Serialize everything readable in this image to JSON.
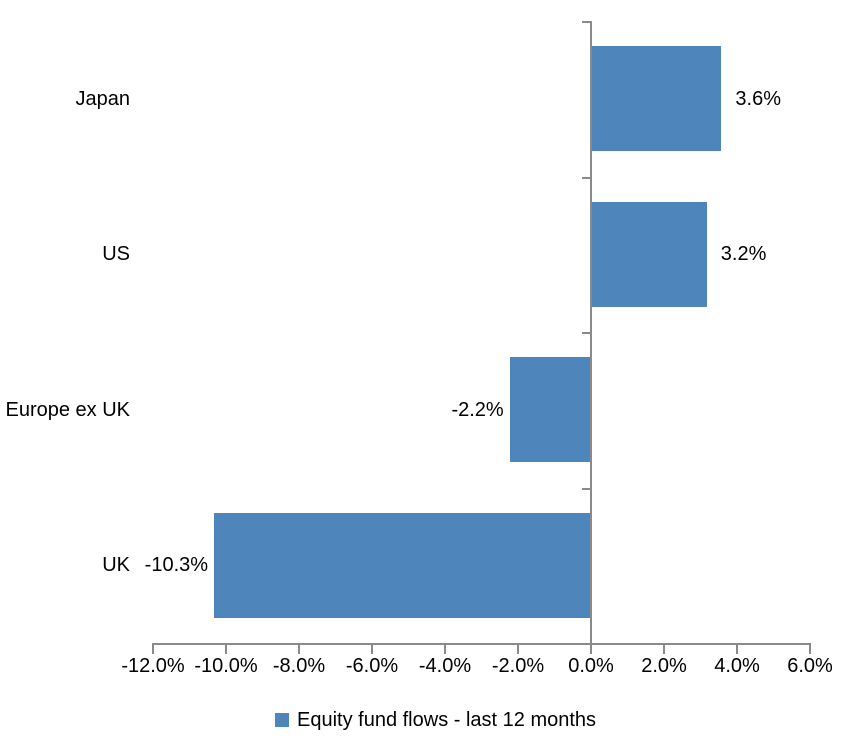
{
  "chart_data": {
    "type": "bar",
    "orientation": "horizontal",
    "categories": [
      "Japan",
      "US",
      "Europe ex UK",
      "UK"
    ],
    "values": [
      3.6,
      3.2,
      -2.2,
      -10.3
    ],
    "data_labels": [
      "3.6%",
      "3.2%",
      "-2.2%",
      "-10.3%"
    ],
    "x_ticks": [
      -12,
      -10,
      -8,
      -6,
      -4,
      -2,
      0,
      2,
      4,
      6
    ],
    "x_tick_labels": [
      "-12.0%",
      "-10.0%",
      "-8.0%",
      "-6.0%",
      "-4.0%",
      "-2.0%",
      "0.0%",
      "2.0%",
      "4.0%",
      "6.0%"
    ],
    "xlim": [
      -12,
      6
    ],
    "grid": false,
    "legend": {
      "position": "bottom",
      "label": "Equity fund flows - last 12 months"
    },
    "colors": {
      "bar": "#4E86BC",
      "axis": "#8A8A8A",
      "text": "#000000"
    }
  }
}
